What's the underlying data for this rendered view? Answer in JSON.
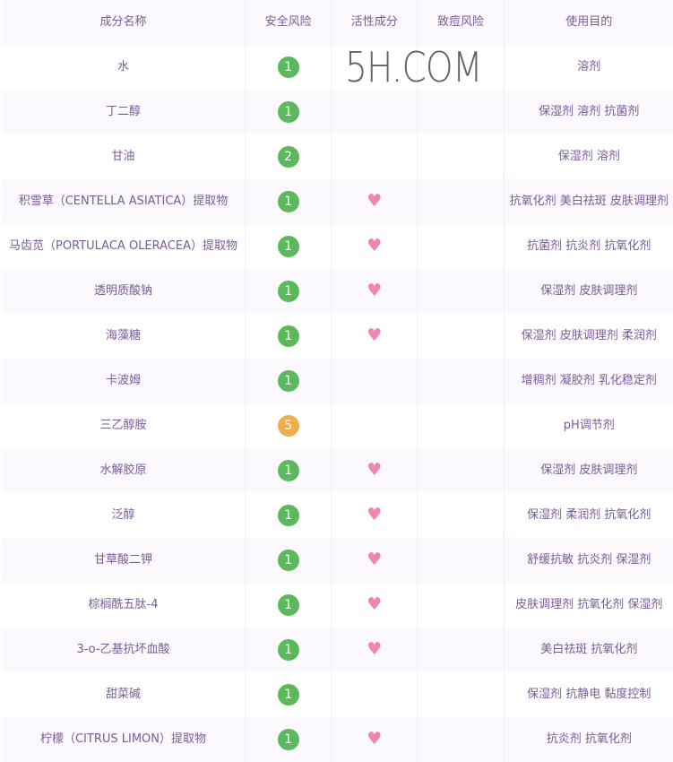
{
  "headers": [
    "成分名称",
    "安全风险",
    "活性成分",
    "致痘风险",
    "使用目的"
  ],
  "colors": {
    "safe": "#5cb85c",
    "warn": "#f0ad4e",
    "heart": "#ee86b5",
    "text": "#7b5b96"
  },
  "rows": [
    {
      "name": "水",
      "risk": "1",
      "active": false,
      "purpose": "溶剂"
    },
    {
      "name": "丁二醇",
      "risk": "1",
      "active": false,
      "purpose": "保湿剂 溶剂 抗菌剂"
    },
    {
      "name": "甘油",
      "risk": "2",
      "active": false,
      "purpose": "保湿剂 溶剂"
    },
    {
      "name": "积雪草（CENTELLA ASIATICA）提取物",
      "risk": "1",
      "active": true,
      "purpose": "抗氧化剂 美白祛斑 皮肤调理剂"
    },
    {
      "name": "马齿苋（PORTULACA OLERACEA）提取物",
      "risk": "1",
      "active": true,
      "purpose": "抗菌剂 抗炎剂 抗氧化剂"
    },
    {
      "name": "透明质酸钠",
      "risk": "1",
      "active": true,
      "purpose": "保湿剂 皮肤调理剂"
    },
    {
      "name": "海藻糖",
      "risk": "1",
      "active": true,
      "purpose": "保湿剂 皮肤调理剂 柔润剂"
    },
    {
      "name": "卡波姆",
      "risk": "1",
      "active": false,
      "purpose": "增稠剂 凝胶剂 乳化稳定剂"
    },
    {
      "name": "三乙醇胺",
      "risk": "5",
      "active": false,
      "purpose": "pH调节剂"
    },
    {
      "name": "水解胶原",
      "risk": "1",
      "active": true,
      "purpose": "保湿剂 皮肤调理剂"
    },
    {
      "name": "泛醇",
      "risk": "1",
      "active": true,
      "purpose": "保湿剂 柔润剂 抗氧化剂"
    },
    {
      "name": "甘草酸二钾",
      "risk": "1",
      "active": true,
      "purpose": "舒缓抗敏 抗炎剂 保湿剂"
    },
    {
      "name": "棕榈酰五肽-4",
      "risk": "1",
      "active": true,
      "purpose": "皮肤调理剂 抗氧化剂 保湿剂"
    },
    {
      "name": "3-o-乙基抗坏血酸",
      "risk": "1",
      "active": true,
      "purpose": "美白祛斑 抗氧化剂"
    },
    {
      "name": "甜菜碱",
      "risk": "1",
      "active": false,
      "purpose": "保湿剂 抗静电 黏度控制"
    },
    {
      "name": "柠檬（CITRUS LIMON）提取物",
      "risk": "1",
      "active": true,
      "purpose": "抗炎剂 抗氧化剂"
    }
  ],
  "heart_icon": "heart-icon",
  "watermark": "5H.COM"
}
